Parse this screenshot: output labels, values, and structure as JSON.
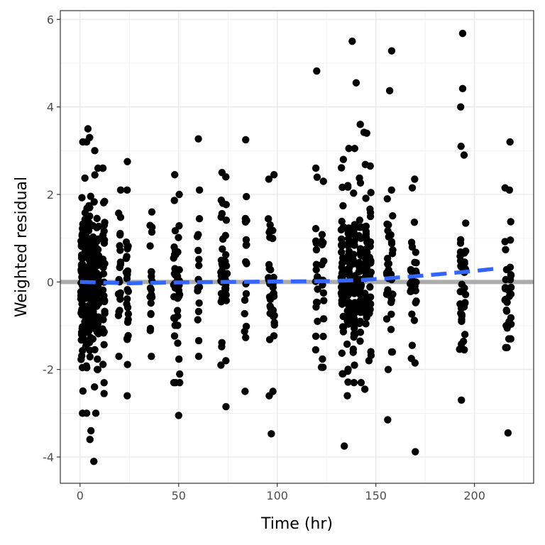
{
  "chart_data": {
    "type": "scatter",
    "title": "",
    "xlabel": "Time (hr)",
    "ylabel": "Weighted residual",
    "xlim": [
      -10,
      230
    ],
    "ylim": [
      -4.6,
      6.2
    ],
    "x_ticks": [
      0,
      50,
      100,
      150,
      200
    ],
    "y_ticks": [
      -4,
      -2,
      0,
      2,
      4,
      6
    ],
    "x_minor": [
      25,
      75,
      125,
      175,
      225
    ],
    "y_minor": [
      -3,
      -1,
      1,
      3,
      5
    ],
    "grid": true,
    "reference_line": {
      "y": 0,
      "color": "#ababab"
    },
    "smooth_line": {
      "color": "#3366ff",
      "style": "dashed",
      "x": [
        0,
        25,
        50,
        75,
        100,
        125,
        140,
        155,
        170,
        185,
        200,
        210
      ],
      "y": [
        0.0,
        -0.03,
        -0.01,
        0.0,
        0.01,
        0.02,
        0.04,
        0.08,
        0.13,
        0.19,
        0.25,
        0.3
      ]
    },
    "point_color": "#000000",
    "outliers": {
      "x": [
        4,
        5,
        7,
        8,
        24,
        50,
        60,
        74,
        84,
        97,
        120,
        134,
        138,
        140,
        144,
        156,
        157,
        158,
        170,
        193,
        194,
        194,
        217,
        218
      ],
      "y": [
        3.5,
        -3.6,
        -4.1,
        -3.0,
        2.75,
        -3.05,
        3.27,
        -2.85,
        3.25,
        -3.47,
        4.82,
        -3.75,
        5.5,
        4.55,
        3.42,
        -3.15,
        4.37,
        5.28,
        -3.88,
        4.0,
        4.42,
        5.68,
        -3.45,
        3.2
      ]
    },
    "columns": [
      {
        "x": 1,
        "n": 60,
        "min": -3.0,
        "max": 3.2,
        "sd": 0.95
      },
      {
        "x": 3,
        "n": 60,
        "min": -3.0,
        "max": 3.2,
        "sd": 0.95
      },
      {
        "x": 5,
        "n": 55,
        "min": -3.4,
        "max": 3.3,
        "sd": 0.9
      },
      {
        "x": 7,
        "n": 45,
        "min": -2.4,
        "max": 3.0,
        "sd": 0.85
      },
      {
        "x": 9,
        "n": 45,
        "min": -2.0,
        "max": 2.6,
        "sd": 0.85
      },
      {
        "x": 12,
        "n": 30,
        "min": -2.55,
        "max": 2.6,
        "sd": 0.9
      },
      {
        "x": 20,
        "n": 20,
        "min": -1.7,
        "max": 2.1,
        "sd": 0.8
      },
      {
        "x": 24,
        "n": 25,
        "min": -2.6,
        "max": 2.1,
        "sd": 0.9
      },
      {
        "x": 36,
        "n": 20,
        "min": -1.7,
        "max": 1.6,
        "sd": 0.75
      },
      {
        "x": 48,
        "n": 22,
        "min": -2.3,
        "max": 2.45,
        "sd": 0.8
      },
      {
        "x": 50,
        "n": 22,
        "min": -2.3,
        "max": 2.0,
        "sd": 0.8
      },
      {
        "x": 60,
        "n": 16,
        "min": -1.7,
        "max": 2.1,
        "sd": 0.75
      },
      {
        "x": 72,
        "n": 25,
        "min": -1.9,
        "max": 2.5,
        "sd": 0.8
      },
      {
        "x": 74,
        "n": 20,
        "min": -1.8,
        "max": 2.4,
        "sd": 0.8
      },
      {
        "x": 84,
        "n": 18,
        "min": -2.5,
        "max": 1.95,
        "sd": 0.8
      },
      {
        "x": 96,
        "n": 22,
        "min": -2.6,
        "max": 2.35,
        "sd": 0.8
      },
      {
        "x": 98,
        "n": 20,
        "min": -2.5,
        "max": 2.45,
        "sd": 0.8
      },
      {
        "x": 120,
        "n": 18,
        "min": -1.55,
        "max": 2.6,
        "sd": 0.8
      },
      {
        "x": 123,
        "n": 16,
        "min": -1.95,
        "max": 2.3,
        "sd": 0.8
      },
      {
        "x": 133,
        "n": 45,
        "min": -2.1,
        "max": 2.8,
        "sd": 0.85
      },
      {
        "x": 136,
        "n": 50,
        "min": -2.6,
        "max": 3.05,
        "sd": 0.9
      },
      {
        "x": 139,
        "n": 45,
        "min": -2.3,
        "max": 3.05,
        "sd": 0.85
      },
      {
        "x": 142,
        "n": 45,
        "min": -2.3,
        "max": 3.6,
        "sd": 0.85
      },
      {
        "x": 145,
        "n": 35,
        "min": -2.45,
        "max": 3.4,
        "sd": 0.85
      },
      {
        "x": 147,
        "n": 25,
        "min": -1.8,
        "max": 2.65,
        "sd": 0.8
      },
      {
        "x": 156,
        "n": 20,
        "min": -2.0,
        "max": 1.9,
        "sd": 0.8
      },
      {
        "x": 158,
        "n": 18,
        "min": -1.6,
        "max": 2.1,
        "sd": 0.8
      },
      {
        "x": 168,
        "n": 18,
        "min": -1.75,
        "max": 2.15,
        "sd": 0.8
      },
      {
        "x": 170,
        "n": 16,
        "min": -1.85,
        "max": 2.35,
        "sd": 0.8
      },
      {
        "x": 193,
        "n": 20,
        "min": -2.7,
        "max": 3.1,
        "sd": 0.9
      },
      {
        "x": 195,
        "n": 18,
        "min": -1.55,
        "max": 2.9,
        "sd": 0.85
      },
      {
        "x": 216,
        "n": 18,
        "min": -1.5,
        "max": 2.15,
        "sd": 0.8
      },
      {
        "x": 218,
        "n": 16,
        "min": -1.3,
        "max": 2.1,
        "sd": 0.8
      }
    ]
  }
}
